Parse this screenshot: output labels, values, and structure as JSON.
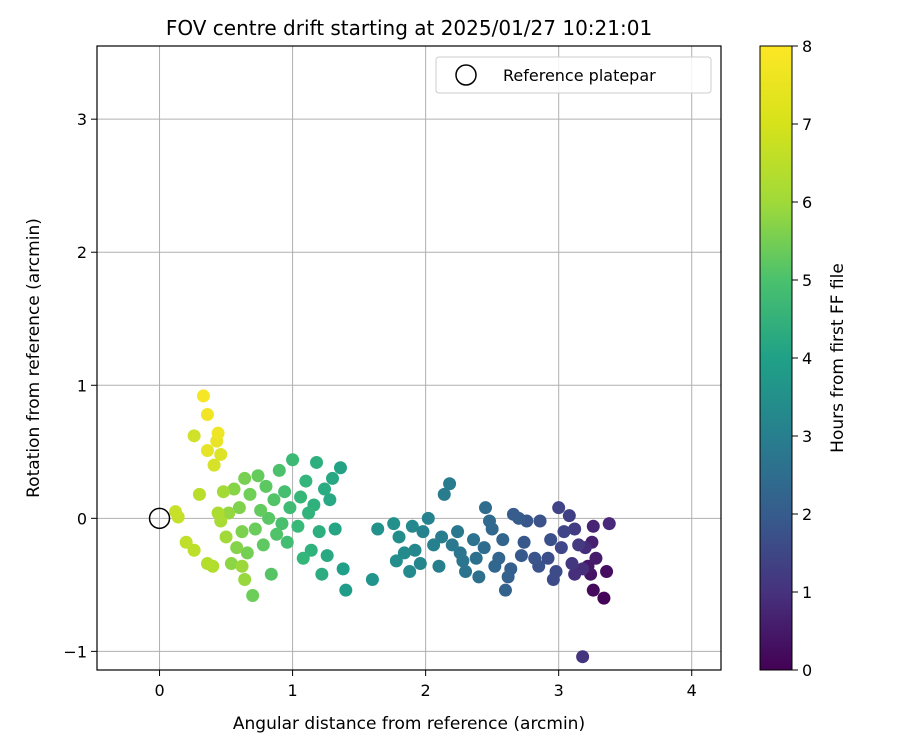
{
  "chart_data": {
    "type": "scatter",
    "title": "FOV centre drift starting at 2025/01/27 10:21:01",
    "xlabel": "Angular distance from reference (arcmin)",
    "ylabel": "Rotation from reference (arcmin)",
    "xlim": [
      -0.47,
      4.22
    ],
    "ylim": [
      -1.14,
      3.55
    ],
    "x_ticks": [
      0,
      1,
      2,
      3,
      4
    ],
    "y_ticks": [
      -1,
      0,
      1,
      2,
      3
    ],
    "x_tick_labels": [
      "0",
      "1",
      "2",
      "3",
      "4"
    ],
    "y_tick_labels": [
      "−1",
      "0",
      "1",
      "2",
      "3"
    ],
    "grid": true,
    "legend": {
      "placement": "top-right",
      "entries": [
        "Reference platepar"
      ]
    },
    "colorbar": {
      "label": "Hours from first FF file",
      "range": [
        0,
        8
      ],
      "ticks": [
        0,
        1,
        2,
        3,
        4,
        5,
        6,
        7,
        8
      ],
      "tick_labels": [
        "0",
        "1",
        "2",
        "3",
        "4",
        "5",
        "6",
        "7",
        "8"
      ],
      "colormap": "viridis"
    },
    "reference_point": {
      "name": "Reference platepar",
      "x": 0,
      "y": 0
    },
    "series": [
      {
        "points": [
          {
            "x": 3.34,
            "y": -0.6,
            "hours": 0.1
          },
          {
            "x": 3.26,
            "y": -0.54,
            "hours": 0.2
          },
          {
            "x": 3.36,
            "y": -0.4,
            "hours": 0.3
          },
          {
            "x": 3.24,
            "y": -0.42,
            "hours": 0.4
          },
          {
            "x": 3.22,
            "y": -0.36,
            "hours": 0.5
          },
          {
            "x": 3.28,
            "y": -0.3,
            "hours": 0.6
          },
          {
            "x": 3.25,
            "y": -0.18,
            "hours": 0.7
          },
          {
            "x": 3.26,
            "y": -0.06,
            "hours": 0.8
          },
          {
            "x": 3.38,
            "y": -0.04,
            "hours": 0.9
          },
          {
            "x": 3.2,
            "y": -0.22,
            "hours": 1.0
          },
          {
            "x": 3.18,
            "y": -0.38,
            "hours": 1.05
          },
          {
            "x": 3.12,
            "y": -0.42,
            "hours": 1.1
          },
          {
            "x": 3.18,
            "y": -1.04,
            "hours": 1.2
          },
          {
            "x": 3.1,
            "y": -0.34,
            "hours": 1.3
          },
          {
            "x": 3.15,
            "y": -0.2,
            "hours": 1.35
          },
          {
            "x": 3.12,
            "y": -0.08,
            "hours": 1.4
          },
          {
            "x": 3.08,
            "y": 0.02,
            "hours": 1.5
          },
          {
            "x": 3.0,
            "y": 0.08,
            "hours": 1.6
          },
          {
            "x": 3.04,
            "y": -0.1,
            "hours": 1.65
          },
          {
            "x": 3.02,
            "y": -0.22,
            "hours": 1.7
          },
          {
            "x": 2.98,
            "y": -0.4,
            "hours": 1.8
          },
          {
            "x": 2.96,
            "y": -0.46,
            "hours": 1.85
          },
          {
            "x": 2.92,
            "y": -0.3,
            "hours": 1.9
          },
          {
            "x": 2.94,
            "y": -0.16,
            "hours": 1.95
          },
          {
            "x": 2.86,
            "y": -0.02,
            "hours": 2.0
          },
          {
            "x": 2.85,
            "y": -0.36,
            "hours": 2.05
          },
          {
            "x": 2.82,
            "y": -0.3,
            "hours": 2.1
          },
          {
            "x": 2.76,
            "y": -0.02,
            "hours": 2.15
          },
          {
            "x": 2.74,
            "y": -0.18,
            "hours": 2.2
          },
          {
            "x": 2.72,
            "y": -0.28,
            "hours": 2.25
          },
          {
            "x": 2.7,
            "y": 0.0,
            "hours": 2.3
          },
          {
            "x": 2.66,
            "y": 0.03,
            "hours": 2.35
          },
          {
            "x": 2.64,
            "y": -0.38,
            "hours": 2.4
          },
          {
            "x": 2.62,
            "y": -0.44,
            "hours": 2.45
          },
          {
            "x": 2.6,
            "y": -0.54,
            "hours": 2.5
          },
          {
            "x": 2.58,
            "y": -0.16,
            "hours": 2.55
          },
          {
            "x": 2.55,
            "y": -0.3,
            "hours": 2.6
          },
          {
            "x": 2.52,
            "y": -0.36,
            "hours": 2.65
          },
          {
            "x": 2.5,
            "y": -0.08,
            "hours": 2.7
          },
          {
            "x": 2.48,
            "y": -0.02,
            "hours": 2.75
          },
          {
            "x": 2.45,
            "y": 0.08,
            "hours": 2.8
          },
          {
            "x": 2.44,
            "y": -0.22,
            "hours": 2.85
          },
          {
            "x": 2.4,
            "y": -0.44,
            "hours": 2.9
          },
          {
            "x": 2.38,
            "y": -0.3,
            "hours": 2.95
          },
          {
            "x": 2.36,
            "y": -0.16,
            "hours": 3.0
          },
          {
            "x": 2.3,
            "y": -0.4,
            "hours": 3.05
          },
          {
            "x": 2.28,
            "y": -0.32,
            "hours": 3.1
          },
          {
            "x": 2.26,
            "y": -0.26,
            "hours": 3.15
          },
          {
            "x": 2.24,
            "y": -0.1,
            "hours": 3.2
          },
          {
            "x": 2.2,
            "y": -0.2,
            "hours": 3.25
          },
          {
            "x": 2.18,
            "y": 0.26,
            "hours": 3.3
          },
          {
            "x": 2.14,
            "y": 0.18,
            "hours": 3.35
          },
          {
            "x": 2.12,
            "y": -0.14,
            "hours": 3.4
          },
          {
            "x": 2.1,
            "y": -0.36,
            "hours": 3.45
          },
          {
            "x": 2.06,
            "y": -0.2,
            "hours": 3.5
          },
          {
            "x": 2.02,
            "y": 0.0,
            "hours": 3.55
          },
          {
            "x": 1.98,
            "y": -0.1,
            "hours": 3.6
          },
          {
            "x": 1.96,
            "y": -0.34,
            "hours": 3.65
          },
          {
            "x": 1.92,
            "y": -0.24,
            "hours": 3.7
          },
          {
            "x": 1.9,
            "y": -0.06,
            "hours": 3.75
          },
          {
            "x": 1.88,
            "y": -0.4,
            "hours": 3.8
          },
          {
            "x": 1.84,
            "y": -0.26,
            "hours": 3.85
          },
          {
            "x": 1.8,
            "y": -0.14,
            "hours": 3.9
          },
          {
            "x": 1.78,
            "y": -0.32,
            "hours": 3.95
          },
          {
            "x": 1.76,
            "y": -0.04,
            "hours": 4.0
          },
          {
            "x": 1.64,
            "y": -0.08,
            "hours": 4.05
          },
          {
            "x": 1.6,
            "y": -0.46,
            "hours": 4.15
          },
          {
            "x": 1.4,
            "y": -0.54,
            "hours": 4.4
          },
          {
            "x": 1.38,
            "y": -0.38,
            "hours": 4.5
          },
          {
            "x": 1.36,
            "y": 0.38,
            "hours": 4.6
          },
          {
            "x": 1.32,
            "y": -0.08,
            "hours": 4.7
          },
          {
            "x": 1.3,
            "y": 0.3,
            "hours": 4.75
          },
          {
            "x": 1.28,
            "y": 0.14,
            "hours": 4.8
          },
          {
            "x": 1.26,
            "y": -0.28,
            "hours": 4.85
          },
          {
            "x": 1.24,
            "y": 0.22,
            "hours": 4.9
          },
          {
            "x": 1.22,
            "y": -0.42,
            "hours": 4.95
          },
          {
            "x": 1.2,
            "y": -0.1,
            "hours": 5.0
          },
          {
            "x": 1.18,
            "y": 0.42,
            "hours": 5.05
          },
          {
            "x": 1.16,
            "y": 0.1,
            "hours": 5.1
          },
          {
            "x": 1.14,
            "y": -0.24,
            "hours": 5.15
          },
          {
            "x": 1.12,
            "y": 0.04,
            "hours": 5.2
          },
          {
            "x": 1.1,
            "y": 0.28,
            "hours": 5.25
          },
          {
            "x": 1.08,
            "y": -0.3,
            "hours": 5.3
          },
          {
            "x": 1.06,
            "y": 0.16,
            "hours": 5.35
          },
          {
            "x": 1.04,
            "y": -0.06,
            "hours": 5.4
          },
          {
            "x": 1.0,
            "y": 0.44,
            "hours": 5.45
          },
          {
            "x": 0.98,
            "y": 0.08,
            "hours": 5.5
          },
          {
            "x": 0.96,
            "y": -0.18,
            "hours": 5.55
          },
          {
            "x": 0.94,
            "y": 0.2,
            "hours": 5.6
          },
          {
            "x": 0.92,
            "y": -0.04,
            "hours": 5.65
          },
          {
            "x": 0.9,
            "y": 0.36,
            "hours": 5.7
          },
          {
            "x": 0.88,
            "y": -0.12,
            "hours": 5.75
          },
          {
            "x": 0.86,
            "y": 0.14,
            "hours": 5.8
          },
          {
            "x": 0.84,
            "y": -0.42,
            "hours": 5.85
          },
          {
            "x": 0.82,
            "y": 0.0,
            "hours": 5.9
          },
          {
            "x": 0.8,
            "y": 0.24,
            "hours": 5.95
          },
          {
            "x": 0.78,
            "y": -0.2,
            "hours": 6.0
          },
          {
            "x": 0.76,
            "y": 0.06,
            "hours": 6.05
          },
          {
            "x": 0.74,
            "y": 0.32,
            "hours": 6.1
          },
          {
            "x": 0.72,
            "y": -0.08,
            "hours": 6.15
          },
          {
            "x": 0.7,
            "y": -0.58,
            "hours": 6.2
          },
          {
            "x": 0.68,
            "y": 0.18,
            "hours": 6.25
          },
          {
            "x": 0.66,
            "y": -0.26,
            "hours": 6.3
          },
          {
            "x": 0.64,
            "y": 0.3,
            "hours": 6.35
          },
          {
            "x": 0.62,
            "y": -0.1,
            "hours": 6.4
          },
          {
            "x": 0.6,
            "y": 0.08,
            "hours": 6.45
          },
          {
            "x": 0.58,
            "y": -0.22,
            "hours": 6.5
          },
          {
            "x": 0.56,
            "y": 0.22,
            "hours": 6.55
          },
          {
            "x": 0.54,
            "y": -0.34,
            "hours": 6.6
          },
          {
            "x": 0.52,
            "y": 0.04,
            "hours": 6.7
          },
          {
            "x": 0.64,
            "y": -0.46,
            "hours": 6.75
          },
          {
            "x": 0.62,
            "y": -0.36,
            "hours": 6.8
          },
          {
            "x": 0.5,
            "y": -0.14,
            "hours": 6.85
          },
          {
            "x": 0.48,
            "y": 0.2,
            "hours": 6.9
          },
          {
            "x": 0.46,
            "y": -0.02,
            "hours": 6.95
          },
          {
            "x": 0.44,
            "y": 0.04,
            "hours": 7.0
          },
          {
            "x": 0.4,
            "y": -0.36,
            "hours": 7.05
          },
          {
            "x": 0.36,
            "y": -0.34,
            "hours": 7.1
          },
          {
            "x": 0.3,
            "y": 0.18,
            "hours": 7.15
          },
          {
            "x": 0.26,
            "y": -0.24,
            "hours": 7.2
          },
          {
            "x": 0.2,
            "y": -0.18,
            "hours": 7.25
          },
          {
            "x": 0.14,
            "y": 0.01,
            "hours": 7.3
          },
          {
            "x": 0.12,
            "y": 0.05,
            "hours": 7.35
          },
          {
            "x": 0.26,
            "y": 0.62,
            "hours": 7.45
          },
          {
            "x": 0.41,
            "y": 0.4,
            "hours": 7.5
          },
          {
            "x": 0.46,
            "y": 0.48,
            "hours": 7.6
          },
          {
            "x": 0.36,
            "y": 0.51,
            "hours": 7.7
          },
          {
            "x": 0.43,
            "y": 0.58,
            "hours": 7.75
          },
          {
            "x": 0.44,
            "y": 0.64,
            "hours": 7.8
          },
          {
            "x": 0.36,
            "y": 0.78,
            "hours": 7.85
          },
          {
            "x": 0.33,
            "y": 0.92,
            "hours": 7.9
          }
        ]
      }
    ]
  }
}
